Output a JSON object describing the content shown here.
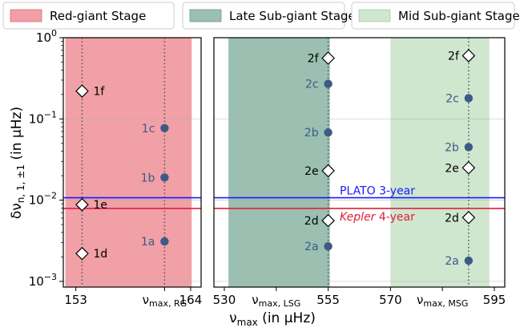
{
  "legend": [
    {
      "label": "Red-giant Stage",
      "color": "#f0a0a6",
      "edge": "#d9707a"
    },
    {
      "label": "Late Sub-giant Stage",
      "color": "#9bbfb0",
      "edge": "#6f9a88"
    },
    {
      "label": "Mid Sub-giant Stage",
      "color": "#cfe6cf",
      "edge": "#a9cfa9"
    }
  ],
  "colors": {
    "dot": "#3d5a86",
    "dot_label": "#3d5a86",
    "plato": "#1a1aff",
    "kepler": "#e0203a",
    "dotted": "#555555"
  },
  "chart_data": {
    "type": "scatter",
    "ylabel": "δν_{n,1,±1} (in μHz)",
    "xlabel": "ν_max (in μHz)",
    "yscale": "log",
    "ylim": [
      0.00085,
      1.0
    ],
    "grid": true,
    "legend_position": "top",
    "yticks": [
      {
        "value": 1.0,
        "base": "10",
        "exp": "0"
      },
      {
        "value": 0.1,
        "base": "10",
        "exp": "−1"
      },
      {
        "value": 0.01,
        "base": "10",
        "exp": "−2"
      },
      {
        "value": 0.001,
        "base": "10",
        "exp": "−3"
      }
    ],
    "hlines": [
      {
        "name": "PLATO",
        "label_italic": "",
        "label_rest": "PLATO 3-year",
        "value": 0.0107,
        "color": "#1a1aff"
      },
      {
        "name": "Kepler",
        "label_italic": "Kepler",
        "label_rest": " 4-year",
        "value": 0.0079,
        "color": "#e0203a"
      }
    ],
    "panels": [
      {
        "xlim": [
          151.8,
          165.0
        ],
        "xticks": [
          {
            "value": 153,
            "label": "153",
            "sub": ""
          },
          {
            "value": 161.5,
            "label": "ν",
            "sub": "max, RG"
          },
          {
            "value": 164,
            "label": "164",
            "sub": ""
          }
        ],
        "bands": [
          {
            "x0": 152.0,
            "x1": 164.1,
            "color": "#f0a0a6"
          }
        ],
        "vlines": [
          153.6,
          161.5
        ],
        "points": [
          {
            "label": "1f",
            "x": 153.6,
            "y": 0.22,
            "marker": "diamond",
            "label_side": "right"
          },
          {
            "label": "1e",
            "x": 153.6,
            "y": 0.0088,
            "marker": "diamond",
            "label_side": "right"
          },
          {
            "label": "1d",
            "x": 153.6,
            "y": 0.0022,
            "marker": "diamond",
            "label_side": "right"
          },
          {
            "label": "1c",
            "x": 161.5,
            "y": 0.077,
            "marker": "circle",
            "label_side": "left"
          },
          {
            "label": "1b",
            "x": 161.5,
            "y": 0.019,
            "marker": "circle",
            "label_side": "left"
          },
          {
            "label": "1a",
            "x": 161.5,
            "y": 0.0031,
            "marker": "circle",
            "label_side": "left"
          }
        ]
      },
      {
        "xlim": [
          527.5,
          597.5
        ],
        "xticks": [
          {
            "value": 530,
            "label": "530",
            "sub": ""
          },
          {
            "value": 542.5,
            "label": "ν",
            "sub": "max, LSG"
          },
          {
            "value": 555,
            "label": "555",
            "sub": ""
          },
          {
            "value": 570,
            "label": "570",
            "sub": ""
          },
          {
            "value": 582.5,
            "label": "ν",
            "sub": "max, MSG"
          },
          {
            "value": 595,
            "label": "595",
            "sub": ""
          }
        ],
        "bands": [
          {
            "x0": 531.0,
            "x1": 555.4,
            "color": "#9bbfb0"
          },
          {
            "x0": 570.0,
            "x1": 593.8,
            "color": "#cfe6cf"
          }
        ],
        "vlines": [
          555.0,
          588.8
        ],
        "points": [
          {
            "label": "2f",
            "x": 555.0,
            "y": 0.56,
            "marker": "diamond",
            "label_side": "left"
          },
          {
            "label": "2c",
            "x": 555.0,
            "y": 0.27,
            "marker": "circle",
            "label_side": "left"
          },
          {
            "label": "2b",
            "x": 555.0,
            "y": 0.068,
            "marker": "circle",
            "label_side": "left"
          },
          {
            "label": "2e",
            "x": 555.0,
            "y": 0.023,
            "marker": "diamond",
            "label_side": "left"
          },
          {
            "label": "2d",
            "x": 555.0,
            "y": 0.0056,
            "marker": "diamond",
            "label_side": "left"
          },
          {
            "label": "2a",
            "x": 555.0,
            "y": 0.0027,
            "marker": "circle",
            "label_side": "left"
          },
          {
            "label": "2f",
            "x": 588.8,
            "y": 0.6,
            "marker": "diamond",
            "label_side": "left"
          },
          {
            "label": "2c",
            "x": 588.8,
            "y": 0.18,
            "marker": "circle",
            "label_side": "left"
          },
          {
            "label": "2b",
            "x": 588.8,
            "y": 0.045,
            "marker": "circle",
            "label_side": "left"
          },
          {
            "label": "2e",
            "x": 588.8,
            "y": 0.025,
            "marker": "diamond",
            "label_side": "left"
          },
          {
            "label": "2d",
            "x": 588.8,
            "y": 0.0061,
            "marker": "diamond",
            "label_side": "left"
          },
          {
            "label": "2a",
            "x": 588.8,
            "y": 0.0018,
            "marker": "circle",
            "label_side": "left"
          }
        ]
      }
    ]
  }
}
